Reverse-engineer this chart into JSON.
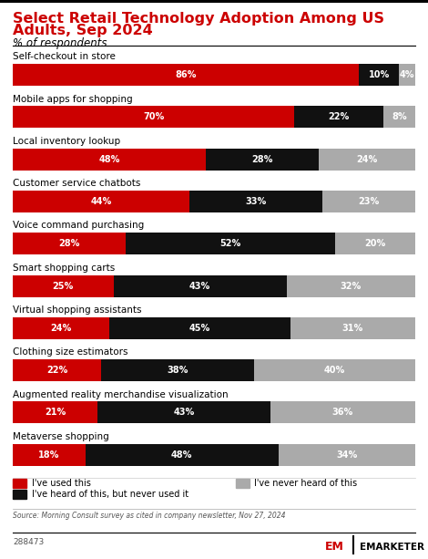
{
  "title_line1": "Select Retail Technology Adoption Among US",
  "title_line2": "Adults, Sep 2024",
  "subtitle": "% of respondents",
  "categories": [
    "Self-checkout in store",
    "Mobile apps for shopping",
    "Local inventory lookup",
    "Customer service chatbots",
    "Voice command purchasing",
    "Smart shopping carts",
    "Virtual shopping assistants",
    "Clothing size estimators",
    "Augmented reality merchandise visualization",
    "Metaverse shopping"
  ],
  "used": [
    86,
    70,
    48,
    44,
    28,
    25,
    24,
    22,
    21,
    18
  ],
  "heard": [
    10,
    22,
    28,
    33,
    52,
    43,
    45,
    38,
    43,
    48
  ],
  "never": [
    4,
    8,
    24,
    23,
    20,
    32,
    31,
    40,
    36,
    34
  ],
  "color_used": "#cc0000",
  "color_heard": "#111111",
  "color_never": "#aaaaaa",
  "title_color": "#cc0000",
  "source_text": "Source: Morning Consult survey as cited in company newsletter, Nov 27, 2024",
  "footer_id": "288473",
  "legend_labels": [
    "I've used this",
    "I've heard of this, but never used it",
    "I've never heard of this"
  ]
}
